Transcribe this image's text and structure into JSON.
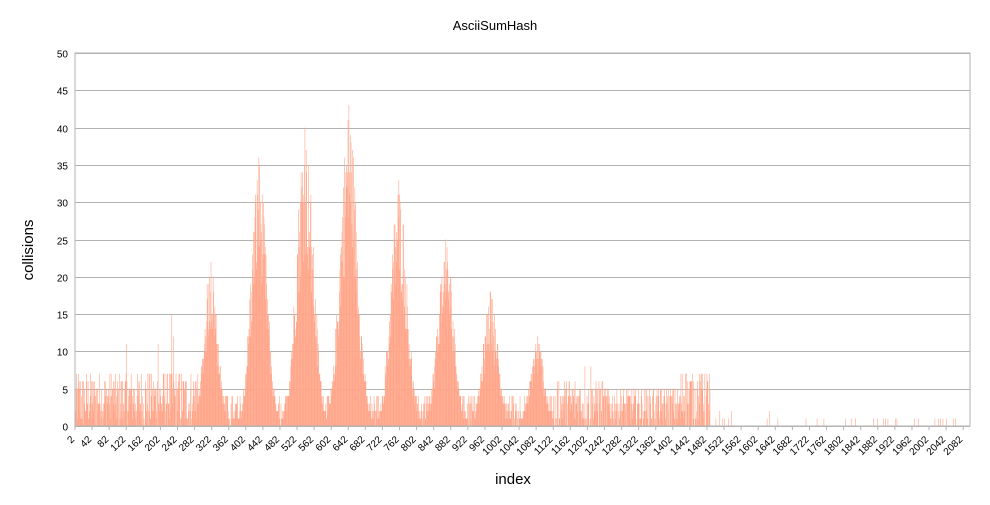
{
  "chart_data": {
    "type": "bar",
    "title": "AsciiSumHash",
    "xlabel": "index",
    "ylabel": "collisions",
    "ylim": [
      0,
      50
    ],
    "yticks": [
      0,
      5,
      10,
      15,
      20,
      25,
      30,
      35,
      40,
      45,
      50
    ],
    "xlim": [
      2,
      2098
    ],
    "xticks": [
      2,
      42,
      82,
      122,
      162,
      202,
      242,
      282,
      322,
      362,
      402,
      442,
      482,
      522,
      562,
      602,
      642,
      682,
      722,
      762,
      802,
      842,
      882,
      922,
      962,
      1002,
      1042,
      1082,
      1122,
      1162,
      1202,
      1242,
      1282,
      1322,
      1362,
      1402,
      1442,
      1482,
      1522,
      1562,
      1602,
      1642,
      1682,
      1722,
      1762,
      1802,
      1842,
      1882,
      1922,
      1962,
      2002,
      2042,
      2082
    ],
    "bar_color": "#ffa68a",
    "grid": true,
    "legend": "none",
    "peaks": [
      {
        "center": 320,
        "height": 22,
        "width": 16
      },
      {
        "center": 432,
        "height": 36,
        "width": 18
      },
      {
        "center": 540,
        "height": 40,
        "width": 20
      },
      {
        "center": 643,
        "height": 43,
        "width": 20
      },
      {
        "center": 760,
        "height": 33,
        "width": 19
      },
      {
        "center": 870,
        "height": 25,
        "width": 19
      },
      {
        "center": 975,
        "height": 18,
        "width": 17
      },
      {
        "center": 1085,
        "height": 12,
        "width": 16
      }
    ],
    "baseline_segments": [
      {
        "from": 2,
        "to": 300,
        "level": 3.5
      },
      {
        "from": 300,
        "to": 1130,
        "level": 2
      },
      {
        "from": 1130,
        "to": 1240,
        "level": 3
      },
      {
        "from": 1240,
        "to": 1420,
        "level": 2.5
      },
      {
        "from": 1420,
        "to": 1490,
        "level": 3.5
      },
      {
        "from": 1490,
        "to": 2098,
        "level": 0.15
      }
    ],
    "spikes": [
      {
        "x": 122,
        "value": 11
      },
      {
        "x": 196,
        "value": 11
      },
      {
        "x": 228,
        "value": 15
      },
      {
        "x": 232,
        "value": 12
      },
      {
        "x": 1196,
        "value": 8
      },
      {
        "x": 1210,
        "value": 8
      },
      {
        "x": 1432,
        "value": 7
      },
      {
        "x": 1472,
        "value": 7
      },
      {
        "x": 1512,
        "value": 2
      },
      {
        "x": 1540,
        "value": 2
      },
      {
        "x": 1628,
        "value": 2
      },
      {
        "x": 1740,
        "value": 1
      },
      {
        "x": 1968,
        "value": 1
      }
    ]
  }
}
